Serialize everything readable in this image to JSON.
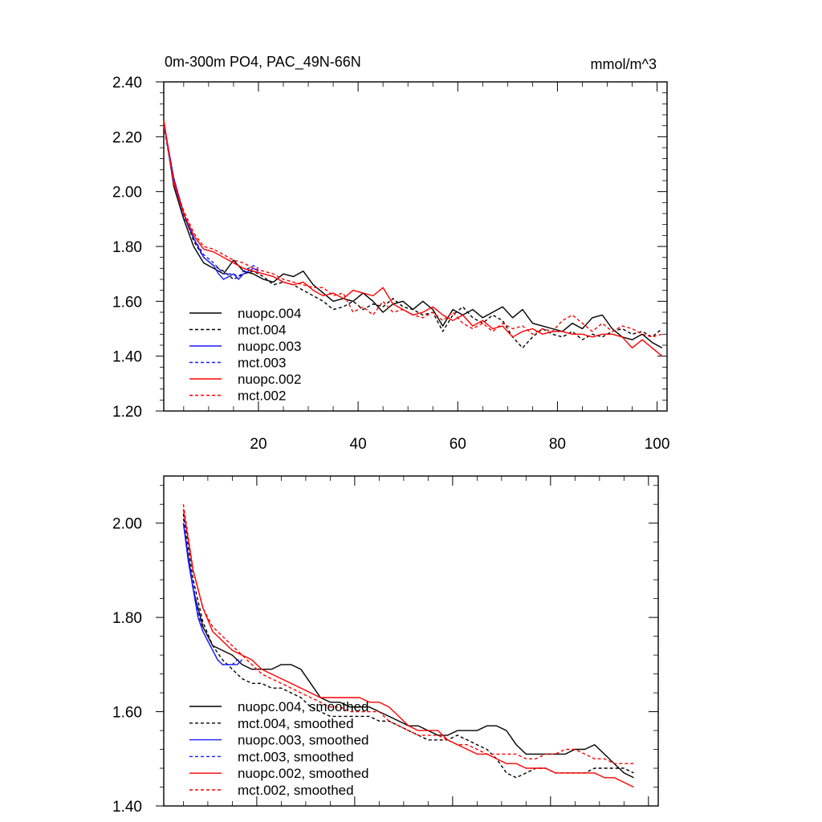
{
  "chart_data": [
    {
      "type": "line",
      "title": "0m-300m PO4, PAC_49N-66N",
      "units": "mmol/m^3",
      "xlim": [
        1,
        102
      ],
      "ylim": [
        1.2,
        2.4
      ],
      "xticks": [
        20,
        40,
        60,
        80,
        100
      ],
      "xtick_labels": [
        "20",
        "40",
        "60",
        "80",
        "100"
      ],
      "yticks": [
        1.2,
        1.4,
        1.6,
        1.8,
        2.0,
        2.2,
        2.4
      ],
      "ytick_labels": [
        "1.20",
        "1.40",
        "1.60",
        "1.80",
        "2.00",
        "2.20",
        "2.40"
      ],
      "legend_position": "bottom-left",
      "series": [
        {
          "name": "nuopc.004",
          "color": "#000000",
          "dashed": false,
          "x": [
            1,
            3,
            5,
            7,
            9,
            11,
            13,
            15,
            17,
            19,
            21,
            23,
            25,
            27,
            29,
            31,
            33,
            35,
            37,
            39,
            41,
            43,
            45,
            47,
            49,
            51,
            53,
            55,
            57,
            59,
            61,
            63,
            65,
            67,
            69,
            71,
            73,
            75,
            77,
            79,
            81,
            83,
            85,
            87,
            89,
            91,
            93,
            95,
            97,
            99,
            101
          ],
          "y": [
            2.26,
            2.02,
            1.9,
            1.8,
            1.74,
            1.72,
            1.7,
            1.75,
            1.71,
            1.7,
            1.68,
            1.67,
            1.7,
            1.69,
            1.71,
            1.66,
            1.63,
            1.6,
            1.61,
            1.6,
            1.63,
            1.6,
            1.56,
            1.59,
            1.6,
            1.57,
            1.6,
            1.57,
            1.51,
            1.57,
            1.55,
            1.57,
            1.54,
            1.56,
            1.58,
            1.54,
            1.57,
            1.52,
            1.51,
            1.5,
            1.49,
            1.52,
            1.5,
            1.54,
            1.55,
            1.5,
            1.47,
            1.46,
            1.48,
            1.45,
            1.43
          ]
        },
        {
          "name": "mct.004",
          "color": "#000000",
          "dashed": true,
          "x": [
            1,
            3,
            5,
            7,
            9,
            11,
            13,
            15,
            17,
            19,
            21,
            23,
            25,
            27,
            29,
            31,
            33,
            35,
            37,
            39,
            41,
            43,
            45,
            47,
            49,
            51,
            53,
            55,
            57,
            59,
            61,
            63,
            65,
            67,
            69,
            71,
            73,
            75,
            77,
            79,
            81,
            83,
            85,
            87,
            89,
            91,
            93,
            95,
            97,
            99,
            101
          ],
          "y": [
            2.25,
            2.05,
            1.92,
            1.82,
            1.76,
            1.73,
            1.71,
            1.68,
            1.7,
            1.71,
            1.69,
            1.66,
            1.67,
            1.66,
            1.64,
            1.62,
            1.6,
            1.57,
            1.58,
            1.6,
            1.57,
            1.59,
            1.58,
            1.61,
            1.58,
            1.57,
            1.55,
            1.56,
            1.49,
            1.55,
            1.58,
            1.54,
            1.52,
            1.55,
            1.53,
            1.47,
            1.43,
            1.47,
            1.5,
            1.48,
            1.47,
            1.49,
            1.46,
            1.48,
            1.47,
            1.49,
            1.5,
            1.48,
            1.49,
            1.47,
            1.5
          ]
        },
        {
          "name": "nuopc.003",
          "color": "#1a1aff",
          "dashed": false,
          "x": [
            1,
            3,
            5,
            7,
            9,
            11,
            12,
            13,
            14,
            15,
            16,
            17,
            18,
            19,
            20
          ],
          "y": [
            2.25,
            2.05,
            1.92,
            1.83,
            1.76,
            1.73,
            1.7,
            1.68,
            1.69,
            1.7,
            1.68,
            1.7,
            1.71,
            1.72,
            1.71
          ]
        },
        {
          "name": "mct.003",
          "color": "#1a1aff",
          "dashed": true,
          "x": [
            1,
            3,
            5,
            7,
            9,
            11,
            12,
            13,
            14,
            15,
            16,
            17,
            18,
            19,
            20
          ],
          "y": [
            2.24,
            2.03,
            1.91,
            1.83,
            1.77,
            1.74,
            1.72,
            1.7,
            1.7,
            1.7,
            1.69,
            1.71,
            1.72,
            1.73,
            1.72
          ]
        },
        {
          "name": "nuopc.002",
          "color": "#ff0000",
          "dashed": false,
          "x": [
            1,
            3,
            5,
            7,
            9,
            11,
            13,
            15,
            17,
            19,
            21,
            23,
            25,
            27,
            29,
            31,
            33,
            35,
            37,
            39,
            41,
            43,
            45,
            47,
            49,
            51,
            53,
            55,
            57,
            59,
            61,
            63,
            65,
            67,
            69,
            71,
            73,
            75,
            77,
            79,
            81,
            83,
            85,
            87,
            89,
            91,
            93,
            95,
            97,
            99,
            101
          ],
          "y": [
            2.26,
            2.03,
            1.92,
            1.84,
            1.79,
            1.78,
            1.76,
            1.74,
            1.72,
            1.71,
            1.7,
            1.69,
            1.67,
            1.66,
            1.67,
            1.64,
            1.62,
            1.63,
            1.61,
            1.64,
            1.63,
            1.62,
            1.65,
            1.59,
            1.57,
            1.55,
            1.56,
            1.58,
            1.55,
            1.53,
            1.55,
            1.51,
            1.53,
            1.5,
            1.51,
            1.47,
            1.49,
            1.5,
            1.48,
            1.49,
            1.49,
            1.48,
            1.48,
            1.47,
            1.48,
            1.48,
            1.47,
            1.43,
            1.46,
            1.43,
            1.4
          ]
        },
        {
          "name": "mct.002",
          "color": "#ff0000",
          "dashed": true,
          "x": [
            1,
            3,
            5,
            7,
            9,
            11,
            13,
            15,
            17,
            19,
            21,
            23,
            25,
            27,
            29,
            31,
            33,
            35,
            37,
            39,
            41,
            43,
            45,
            47,
            49,
            51,
            53,
            55,
            57,
            59,
            61,
            63,
            65,
            67,
            69,
            71,
            73,
            75,
            77,
            79,
            81,
            83,
            85,
            87,
            89,
            91,
            93,
            95,
            97,
            99,
            101
          ],
          "y": [
            2.24,
            2.04,
            1.93,
            1.85,
            1.8,
            1.79,
            1.77,
            1.75,
            1.74,
            1.72,
            1.71,
            1.7,
            1.68,
            1.67,
            1.66,
            1.65,
            1.65,
            1.62,
            1.63,
            1.56,
            1.58,
            1.55,
            1.6,
            1.56,
            1.57,
            1.55,
            1.54,
            1.56,
            1.53,
            1.56,
            1.52,
            1.5,
            1.52,
            1.49,
            1.52,
            1.5,
            1.51,
            1.48,
            1.5,
            1.49,
            1.53,
            1.55,
            1.52,
            1.49,
            1.52,
            1.49,
            1.51,
            1.5,
            1.48,
            1.47,
            1.48
          ]
        }
      ]
    },
    {
      "type": "line",
      "title": "",
      "xlim": [
        1,
        102
      ],
      "ylim": [
        1.4,
        2.1
      ],
      "xticks": [
        20,
        40,
        60,
        80,
        100
      ],
      "xtick_labels": [],
      "yticks": [
        1.4,
        1.6,
        1.8,
        2.0
      ],
      "ytick_labels": [
        "1.40",
        "1.60",
        "1.80",
        "2.00"
      ],
      "legend_position": "bottom-left",
      "series": [
        {
          "name": "nuopc.004, smoothed",
          "color": "#000000",
          "dashed": false,
          "x": [
            5,
            7,
            9,
            11,
            13,
            15,
            17,
            19,
            21,
            23,
            25,
            27,
            29,
            31,
            33,
            35,
            37,
            39,
            41,
            43,
            45,
            47,
            49,
            51,
            53,
            55,
            57,
            59,
            61,
            63,
            65,
            67,
            69,
            71,
            73,
            75,
            77,
            79,
            81,
            83,
            85,
            87,
            89,
            91,
            93,
            95,
            97
          ],
          "y": [
            2.0,
            1.86,
            1.78,
            1.74,
            1.73,
            1.72,
            1.7,
            1.69,
            1.69,
            1.69,
            1.7,
            1.7,
            1.69,
            1.66,
            1.63,
            1.62,
            1.62,
            1.61,
            1.61,
            1.61,
            1.6,
            1.59,
            1.58,
            1.57,
            1.57,
            1.56,
            1.55,
            1.55,
            1.56,
            1.56,
            1.56,
            1.57,
            1.57,
            1.56,
            1.53,
            1.51,
            1.51,
            1.51,
            1.51,
            1.51,
            1.52,
            1.52,
            1.53,
            1.51,
            1.49,
            1.47,
            1.46
          ]
        },
        {
          "name": "mct.004, smoothed",
          "color": "#000000",
          "dashed": true,
          "x": [
            5,
            7,
            9,
            11,
            13,
            15,
            17,
            19,
            21,
            23,
            25,
            27,
            29,
            31,
            33,
            35,
            37,
            39,
            41,
            43,
            45,
            47,
            49,
            51,
            53,
            55,
            57,
            59,
            61,
            63,
            65,
            67,
            69,
            71,
            73,
            75,
            77,
            79,
            81,
            83,
            85,
            87,
            89,
            91,
            93,
            95,
            97
          ],
          "y": [
            2.02,
            1.88,
            1.79,
            1.74,
            1.71,
            1.69,
            1.67,
            1.66,
            1.66,
            1.65,
            1.65,
            1.64,
            1.63,
            1.61,
            1.6,
            1.59,
            1.59,
            1.59,
            1.59,
            1.59,
            1.58,
            1.58,
            1.57,
            1.56,
            1.55,
            1.54,
            1.54,
            1.54,
            1.55,
            1.54,
            1.53,
            1.52,
            1.5,
            1.47,
            1.46,
            1.47,
            1.48,
            1.48,
            1.47,
            1.47,
            1.47,
            1.47,
            1.48,
            1.48,
            1.48,
            1.48,
            1.47
          ]
        },
        {
          "name": "nuopc.003, smoothed",
          "color": "#1a1aff",
          "dashed": false,
          "x": [
            5,
            6,
            7,
            8,
            9,
            10,
            11,
            12,
            13,
            14,
            15,
            16,
            17
          ],
          "y": [
            2.0,
            1.92,
            1.86,
            1.8,
            1.77,
            1.75,
            1.73,
            1.71,
            1.7,
            1.7,
            1.7,
            1.7,
            1.71
          ]
        },
        {
          "name": "mct.003, smoothed",
          "color": "#1a1aff",
          "dashed": true,
          "x": [
            5,
            6,
            7,
            8,
            9,
            10,
            11,
            12,
            13,
            14,
            15,
            16,
            17
          ],
          "y": [
            2.01,
            1.93,
            1.87,
            1.81,
            1.77,
            1.75,
            1.73,
            1.71,
            1.7,
            1.7,
            1.7,
            1.71,
            1.71
          ]
        },
        {
          "name": "nuopc.002, smoothed",
          "color": "#ff0000",
          "dashed": false,
          "x": [
            5,
            7,
            9,
            11,
            13,
            15,
            17,
            19,
            21,
            23,
            25,
            27,
            29,
            31,
            33,
            35,
            37,
            39,
            41,
            43,
            45,
            47,
            49,
            51,
            53,
            55,
            57,
            59,
            61,
            63,
            65,
            67,
            69,
            71,
            73,
            75,
            77,
            79,
            81,
            83,
            85,
            87,
            89,
            91,
            93,
            95,
            97
          ],
          "y": [
            2.03,
            1.9,
            1.82,
            1.77,
            1.75,
            1.73,
            1.72,
            1.71,
            1.69,
            1.68,
            1.67,
            1.66,
            1.65,
            1.64,
            1.63,
            1.63,
            1.63,
            1.63,
            1.63,
            1.62,
            1.62,
            1.61,
            1.59,
            1.57,
            1.56,
            1.56,
            1.56,
            1.54,
            1.53,
            1.52,
            1.51,
            1.51,
            1.5,
            1.49,
            1.49,
            1.48,
            1.48,
            1.48,
            1.47,
            1.47,
            1.47,
            1.47,
            1.47,
            1.46,
            1.46,
            1.45,
            1.44
          ]
        },
        {
          "name": "mct.002, smoothed",
          "color": "#ff0000",
          "dashed": true,
          "x": [
            5,
            7,
            9,
            11,
            13,
            15,
            17,
            19,
            21,
            23,
            25,
            27,
            29,
            31,
            33,
            35,
            37,
            39,
            41,
            43,
            45,
            47,
            49,
            51,
            53,
            55,
            57,
            59,
            61,
            63,
            65,
            67,
            69,
            71,
            73,
            75,
            77,
            79,
            81,
            83,
            85,
            87,
            89,
            91,
            93,
            95,
            97
          ],
          "y": [
            2.04,
            1.9,
            1.82,
            1.78,
            1.76,
            1.74,
            1.72,
            1.7,
            1.68,
            1.67,
            1.66,
            1.65,
            1.64,
            1.63,
            1.62,
            1.61,
            1.61,
            1.6,
            1.6,
            1.6,
            1.6,
            1.58,
            1.57,
            1.56,
            1.55,
            1.55,
            1.55,
            1.54,
            1.53,
            1.53,
            1.52,
            1.51,
            1.51,
            1.51,
            1.51,
            1.5,
            1.5,
            1.51,
            1.51,
            1.52,
            1.52,
            1.51,
            1.5,
            1.5,
            1.49,
            1.49,
            1.49
          ]
        }
      ]
    }
  ]
}
